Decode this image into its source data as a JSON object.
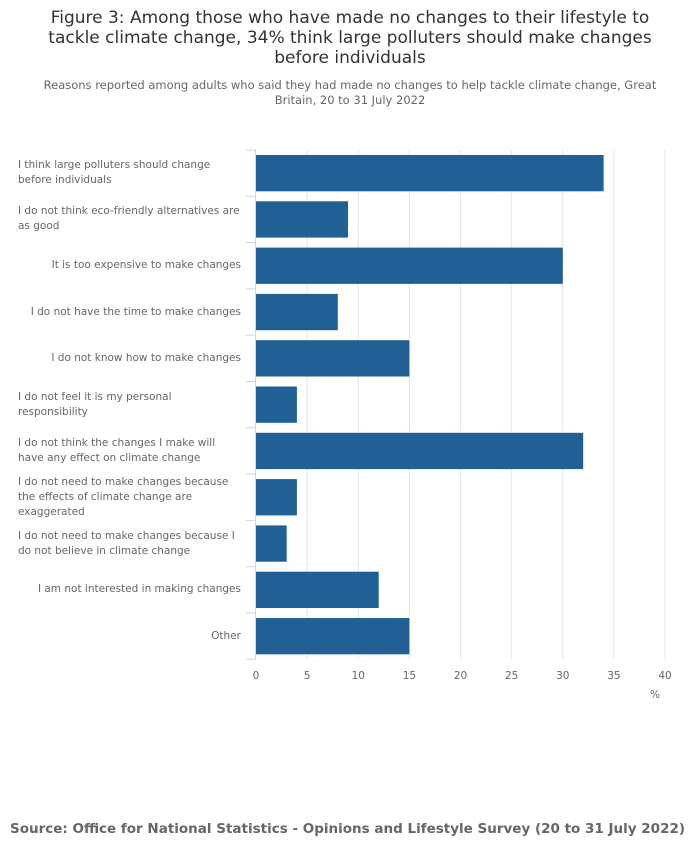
{
  "title": "Figure 3: Among those who have made no changes to their lifestyle to tackle climate change, 34% think large polluters should make changes before individuals",
  "subtitle": "Reasons reported among adults who said they had made no changes to help tackle climate change, Great Britain, 20 to 31 July 2022",
  "source": "Source: Office for National Statistics - Opinions and Lifestyle Survey (20 to 31 July 2022)",
  "chart_data": {
    "type": "bar",
    "orientation": "horizontal",
    "categories": [
      "I think large polluters should change before individuals",
      "I do not think eco-friendly alternatives are as good",
      "It is too expensive to make changes",
      "I do not have the time to make changes",
      "I do not know how to make changes",
      "I do not feel it is my personal responsibility",
      "I do not think the changes I make will have any effect on climate change",
      "I do not need to make changes because the effects of climate change are exaggerated",
      "I do not need to make changes because I do not believe in climate change",
      "I am not interested in making changes",
      "Other"
    ],
    "values": [
      34,
      9,
      30,
      8,
      15,
      4,
      32,
      4,
      3,
      12,
      15
    ],
    "xlabel": "%",
    "xlim": [
      0,
      40
    ],
    "xticks": [
      "0",
      "5",
      "10",
      "15",
      "20",
      "25",
      "30",
      "35",
      "40"
    ],
    "grid": true,
    "bar_color": "#206095"
  }
}
